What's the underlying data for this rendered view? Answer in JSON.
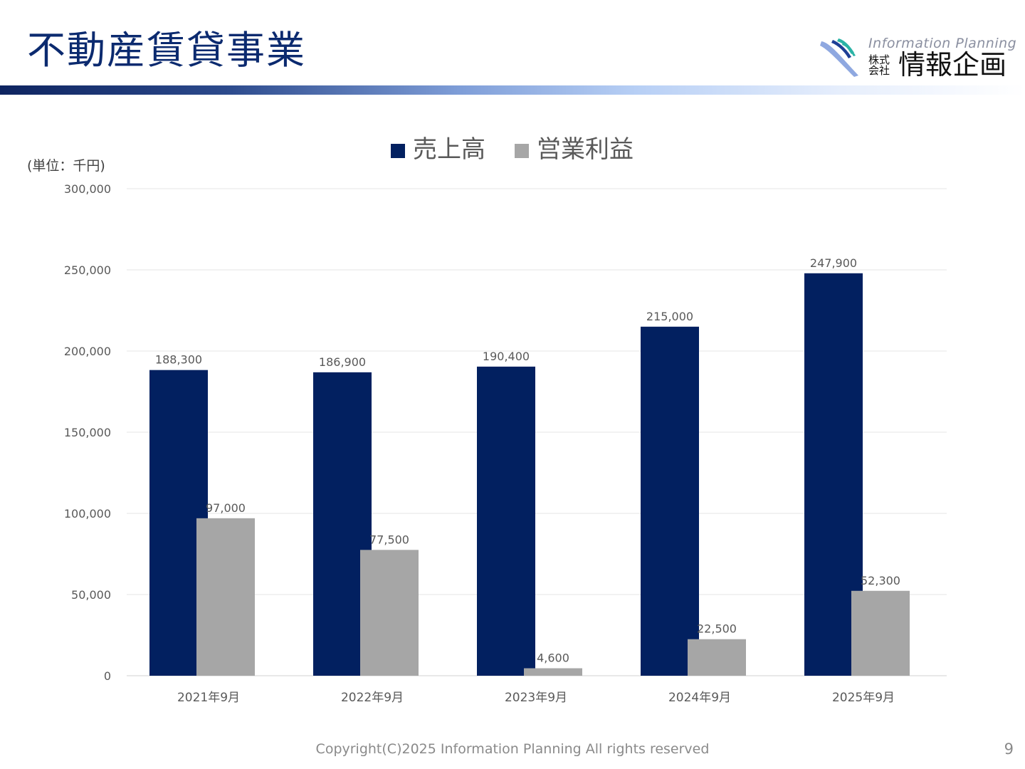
{
  "slide": {
    "title": "不動産賃貸事業",
    "copyright": "Copyright(C)2025 Information Planning All rights reserved",
    "page_number": "9"
  },
  "logo": {
    "english": "Information Planning",
    "kabushiki": "株式会社",
    "japanese": "情報企画",
    "colors": [
      "#8fa8e0",
      "#2bb3a6",
      "#1e3f95"
    ]
  },
  "chart_data": {
    "type": "bar",
    "unit_label": "(単位：千円)",
    "categories": [
      "2021年9月",
      "2022年9月",
      "2023年9月",
      "2024年9月",
      "2025年9月"
    ],
    "series": [
      {
        "name": "売上高",
        "color": "#022060",
        "values": [
          188300,
          186900,
          190400,
          215000,
          247900
        ],
        "labels": [
          "188,300",
          "186,900",
          "190,400",
          "215,000",
          "247,900"
        ]
      },
      {
        "name": "営業利益",
        "color": "#a6a6a6",
        "values": [
          97000,
          77500,
          4600,
          22500,
          52300
        ],
        "labels": [
          "97,000",
          "77,500",
          "4,600",
          "22,500",
          "52,300"
        ]
      }
    ],
    "ylim": [
      0,
      300000
    ],
    "yticks": [
      0,
      50000,
      100000,
      150000,
      200000,
      250000,
      300000
    ],
    "ytick_labels": [
      "0",
      "50,000",
      "100,000",
      "150,000",
      "200,000",
      "250,000",
      "300,000"
    ],
    "grid": true,
    "legend_position": "top-center"
  }
}
